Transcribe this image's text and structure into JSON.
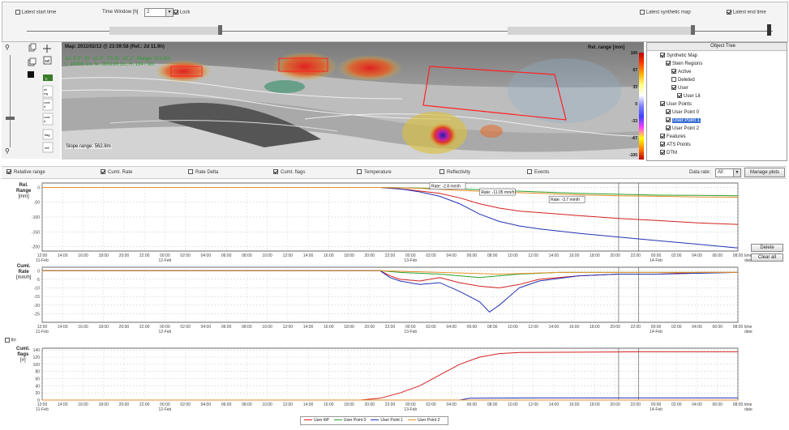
{
  "top_bar": {
    "latest_start_time_label": "Latest start time",
    "time_window_label": "Time Window [h]",
    "time_window_value": "2",
    "lock_label": "Lock",
    "latest_synthetic_map_label": "Latest synthetic map",
    "latest_end_time_label": "Latest end time"
  },
  "map": {
    "title": "Map: 2011/02/13 @ 23:59:58 (Ref.: 2d 11.9h)",
    "info_line1": "Az: 8.3°, El: -11.0°, TS El: -11.1°, Range: 313.9m",
    "info_line2": "L: 19865 Gn, N: -303196 Gn, H: 134 / 3m",
    "slope_range": "Slope range: 562.8m",
    "colorbar_title": "Rel. range [mm]",
    "colorbar_ticks": [
      "100",
      "67",
      "33",
      "0",
      "-33",
      "-67",
      "-100"
    ]
  },
  "toolbar_icons": [
    "zoom-icon",
    "copy-icon",
    "pan-icon",
    "layers-icon",
    "rotate-icon",
    "select-icon",
    "color-icon",
    "histogram-icon",
    "stats-icon",
    "reflectivity-icon",
    "cancel-icon",
    "fit-icon"
  ],
  "object_tree": {
    "title": "Object Tree",
    "items": [
      {
        "label": "Synthetic Map",
        "level": 0,
        "checked": true,
        "selected": false
      },
      {
        "label": "Stein Regions",
        "level": 1,
        "checked": true,
        "selected": false
      },
      {
        "label": "Active",
        "level": 2,
        "checked": true,
        "selected": false
      },
      {
        "label": "Deleted",
        "level": 2,
        "checked": false,
        "selected": false
      },
      {
        "label": "User",
        "level": 2,
        "checked": true,
        "selected": false
      },
      {
        "label": "User Lit",
        "level": 3,
        "checked": true,
        "selected": false
      },
      {
        "label": "User Points",
        "level": 0,
        "checked": true,
        "selected": false
      },
      {
        "label": "User Point 0",
        "level": 1,
        "checked": true,
        "selected": false
      },
      {
        "label": "User Point 1",
        "level": 1,
        "checked": true,
        "selected": true
      },
      {
        "label": "User Point 2",
        "level": 1,
        "checked": true,
        "selected": false
      },
      {
        "label": "Features",
        "level": 0,
        "checked": true,
        "selected": false
      },
      {
        "label": "ATS Points",
        "level": 0,
        "checked": true,
        "selected": false
      },
      {
        "label": "DTM",
        "level": 0,
        "checked": true,
        "selected": false
      }
    ]
  },
  "plot_options": [
    {
      "label": "Relative range",
      "checked": true
    },
    {
      "label": "Cumt. Rate",
      "checked": true
    },
    {
      "label": "Rate Delta",
      "checked": false
    },
    {
      "label": "Cumt. flags",
      "checked": true
    },
    {
      "label": "Temperature",
      "checked": false
    },
    {
      "label": "Reflectivity",
      "checked": false
    },
    {
      "label": "Events",
      "checked": false
    }
  ],
  "data_rate": {
    "label": "Data rate:",
    "value": "All"
  },
  "buttons": {
    "manage_plots": "Manage plots",
    "delete": "Delete",
    "clear_all": "Clear all"
  },
  "log_checkbox_label": "lin",
  "charts_ylabels": {
    "range": [
      "Rel.",
      "Range",
      "[mm]"
    ],
    "rate": [
      "Cuml.",
      "Rate",
      "[mm/h]"
    ],
    "flags": [
      "Cuml.",
      "flags",
      "[#]"
    ]
  },
  "rate_annotations": [
    "Rate: -2.8 mm/h",
    "Rate: -11.05 mm/h",
    "Rate: -3.7 mm/h"
  ],
  "time_ticks": [
    "12:00",
    "14:00",
    "16:00",
    "18:00",
    "20:00",
    "22:00",
    "00:00",
    "02:00",
    "04:00",
    "06:00",
    "08:00",
    "10:00",
    "12:00",
    "14:00",
    "16:00",
    "18:00",
    "20:00",
    "22:00",
    "00:00",
    "02:00",
    "04:00",
    "06:00",
    "08:00",
    "10:00",
    "12:00",
    "14:00",
    "16:00",
    "18:00",
    "20:00",
    "22:00",
    "00:00",
    "02:00",
    "04:00",
    "06:00",
    "08:00"
  ],
  "date_ticks": [
    {
      "tick_index": 0,
      "label": "11-Feb"
    },
    {
      "tick_index": 6,
      "label": "12-Feb"
    },
    {
      "tick_index": 18,
      "label": "13-Feb"
    },
    {
      "tick_index": 30,
      "label": "14-Feb"
    }
  ],
  "right_axis_labels": [
    "time",
    "date"
  ],
  "chart_data": [
    {
      "type": "line",
      "title": "",
      "ylabel": "Rel. Range [mm]",
      "ylim": [
        -215,
        15
      ],
      "y_ticks": [
        0,
        -50,
        -100,
        -150,
        -200
      ],
      "x_range_hours": [
        0,
        70
      ],
      "series": [
        {
          "color": "#d32020",
          "points": [
            [
              0,
              0
            ],
            [
              34,
              0
            ],
            [
              37,
              -8
            ],
            [
              40,
              -20
            ],
            [
              42,
              -35
            ],
            [
              44,
              -55
            ],
            [
              46,
              -70
            ],
            [
              48,
              -80
            ],
            [
              50,
              -85
            ],
            [
              54,
              -95
            ],
            [
              58,
              -105
            ],
            [
              62,
              -112
            ],
            [
              66,
              -120
            ],
            [
              70,
              -125
            ]
          ]
        },
        {
          "color": "#2ca02c",
          "points": [
            [
              0,
              0
            ],
            [
              34,
              0
            ],
            [
              38,
              -2
            ],
            [
              42,
              -5
            ],
            [
              46,
              -10
            ],
            [
              50,
              -15
            ],
            [
              54,
              -20
            ],
            [
              58,
              -23
            ],
            [
              62,
              -26
            ],
            [
              66,
              -27
            ],
            [
              70,
              -28
            ]
          ]
        },
        {
          "color": "#2431b3",
          "points": [
            [
              0,
              0
            ],
            [
              34,
              0
            ],
            [
              36,
              -5
            ],
            [
              38,
              -15
            ],
            [
              40,
              -30
            ],
            [
              42,
              -55
            ],
            [
              44,
              -90
            ],
            [
              46,
              -115
            ],
            [
              48,
              -130
            ],
            [
              50,
              -140
            ],
            [
              54,
              -155
            ],
            [
              58,
              -168
            ],
            [
              62,
              -180
            ],
            [
              66,
              -192
            ],
            [
              70,
              -205
            ]
          ]
        },
        {
          "color": "#e38f2a",
          "points": [
            [
              0,
              0
            ],
            [
              34,
              0
            ],
            [
              38,
              -3
            ],
            [
              42,
              -10
            ],
            [
              46,
              -15
            ],
            [
              50,
              -20
            ],
            [
              54,
              -25
            ],
            [
              58,
              -28
            ],
            [
              62,
              -30
            ],
            [
              66,
              -32
            ],
            [
              70,
              -33
            ]
          ]
        }
      ]
    },
    {
      "type": "line",
      "title": "",
      "ylabel": "Cuml. Rate [mm/h]",
      "ylim": [
        -30,
        2
      ],
      "y_ticks": [
        0,
        -5,
        -10,
        -15,
        -20,
        -25
      ],
      "x_range_hours": [
        0,
        70
      ],
      "series": [
        {
          "color": "#d32020",
          "points": [
            [
              0,
              0
            ],
            [
              34,
              0
            ],
            [
              35,
              -3
            ],
            [
              36,
              -5
            ],
            [
              38,
              -6
            ],
            [
              40,
              -4
            ],
            [
              42,
              -7
            ],
            [
              44,
              -9
            ],
            [
              46,
              -10
            ],
            [
              48,
              -8
            ],
            [
              50,
              -5
            ],
            [
              54,
              -3
            ],
            [
              58,
              -2
            ],
            [
              62,
              -2
            ],
            [
              66,
              -1
            ],
            [
              70,
              -1
            ]
          ]
        },
        {
          "color": "#2ca02c",
          "points": [
            [
              0,
              0
            ],
            [
              34,
              0
            ],
            [
              36,
              -1
            ],
            [
              40,
              -2
            ],
            [
              44,
              -4
            ],
            [
              46,
              -3
            ],
            [
              48,
              -2
            ],
            [
              52,
              -1
            ],
            [
              58,
              -1
            ],
            [
              70,
              -1
            ]
          ]
        },
        {
          "color": "#2431b3",
          "points": [
            [
              0,
              0
            ],
            [
              34,
              0
            ],
            [
              35,
              -4
            ],
            [
              36,
              -6
            ],
            [
              38,
              -8
            ],
            [
              40,
              -7
            ],
            [
              42,
              -12
            ],
            [
              44,
              -18
            ],
            [
              45,
              -24
            ],
            [
              46,
              -20
            ],
            [
              48,
              -10
            ],
            [
              50,
              -6
            ],
            [
              54,
              -3
            ],
            [
              58,
              -2
            ],
            [
              62,
              -2
            ],
            [
              70,
              -1
            ]
          ]
        },
        {
          "color": "#e38f2a",
          "points": [
            [
              0,
              0
            ],
            [
              34,
              0
            ],
            [
              40,
              -1
            ],
            [
              46,
              -2
            ],
            [
              52,
              -1
            ],
            [
              70,
              -1
            ]
          ]
        }
      ]
    },
    {
      "type": "line",
      "title": "",
      "ylabel": "Cuml. flags [#]",
      "ylim": [
        0,
        145
      ],
      "y_ticks": [
        0,
        20,
        40,
        60,
        80,
        100,
        120,
        140
      ],
      "x_range_hours": [
        0,
        70
      ],
      "series": [
        {
          "name": "User tliP",
          "color": "#d32020",
          "points": [
            [
              0,
              0
            ],
            [
              32,
              0
            ],
            [
              34,
              5
            ],
            [
              36,
              20
            ],
            [
              38,
              40
            ],
            [
              40,
              70
            ],
            [
              42,
              100
            ],
            [
              44,
              120
            ],
            [
              46,
              130
            ],
            [
              48,
              133
            ],
            [
              54,
              134
            ],
            [
              60,
              135
            ],
            [
              70,
              135
            ]
          ]
        },
        {
          "name": "User Point 0",
          "color": "#2ca02c",
          "points": [
            [
              0,
              0
            ],
            [
              70,
              0
            ]
          ]
        },
        {
          "name": "User Point 1",
          "color": "#2431b3",
          "points": [
            [
              0,
              0
            ],
            [
              42,
              0
            ],
            [
              43,
              5
            ],
            [
              50,
              6
            ],
            [
              70,
              6
            ]
          ]
        },
        {
          "name": "User Point 2",
          "color": "#e38f2a",
          "points": [
            [
              0,
              0
            ],
            [
              70,
              0
            ]
          ]
        }
      ]
    }
  ]
}
